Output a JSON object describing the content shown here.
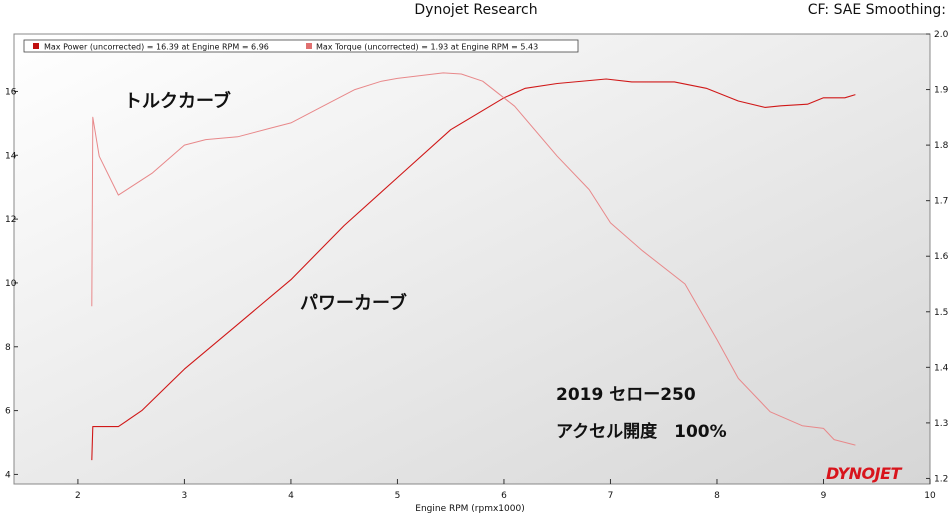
{
  "header": {
    "center_title": "Dynojet Research",
    "right_text": "CF: SAE  Smoothing:"
  },
  "brand": {
    "logo_text": "DYNOJET",
    "logo_color": "#d8141c"
  },
  "chart_data": {
    "type": "line",
    "xlabel": "Engine RPM (rpmx1000)",
    "xlim": [
      1.4,
      10
    ],
    "x_ticks": [
      2,
      3,
      4,
      5,
      6,
      7,
      8,
      9,
      10
    ],
    "y_left_lim": [
      3.7,
      17.8
    ],
    "y_left_ticks": [
      4,
      6,
      8,
      10,
      12,
      14,
      16
    ],
    "y_right_lim": [
      1.19,
      2.0
    ],
    "y_right_ticks": [
      1.2,
      1.3,
      1.4,
      1.5,
      1.6,
      1.7,
      1.8,
      1.9,
      2.0
    ],
    "grid": false,
    "legend_position": "top-left",
    "series": [
      {
        "name": "Max Power (uncorrected) = 16.39 at Engine RPM = 6.96",
        "axis": "left",
        "color": "#d01818",
        "points": [
          [
            2.13,
            4.45
          ],
          [
            2.14,
            5.5
          ],
          [
            2.18,
            5.5
          ],
          [
            2.38,
            5.5
          ],
          [
            2.6,
            6.0
          ],
          [
            3.0,
            7.3
          ],
          [
            3.5,
            8.7
          ],
          [
            4.0,
            10.1
          ],
          [
            4.5,
            11.8
          ],
          [
            5.0,
            13.3
          ],
          [
            5.5,
            14.8
          ],
          [
            6.0,
            15.8
          ],
          [
            6.2,
            16.1
          ],
          [
            6.5,
            16.25
          ],
          [
            6.96,
            16.39
          ],
          [
            7.2,
            16.3
          ],
          [
            7.6,
            16.3
          ],
          [
            7.9,
            16.1
          ],
          [
            8.2,
            15.7
          ],
          [
            8.45,
            15.5
          ],
          [
            8.6,
            15.55
          ],
          [
            8.85,
            15.6
          ],
          [
            9.0,
            15.8
          ],
          [
            9.2,
            15.8
          ],
          [
            9.3,
            15.9
          ]
        ]
      },
      {
        "name": "Max Torque (uncorrected) = 1.93 at Engine RPM = 5.43",
        "axis": "right",
        "color": "#e8888a",
        "points": [
          [
            2.13,
            1.51
          ],
          [
            2.14,
            1.85
          ],
          [
            2.2,
            1.78
          ],
          [
            2.38,
            1.71
          ],
          [
            2.7,
            1.75
          ],
          [
            3.0,
            1.8
          ],
          [
            3.2,
            1.81
          ],
          [
            3.5,
            1.815
          ],
          [
            3.8,
            1.83
          ],
          [
            4.0,
            1.84
          ],
          [
            4.3,
            1.87
          ],
          [
            4.6,
            1.9
          ],
          [
            4.85,
            1.915
          ],
          [
            5.0,
            1.92
          ],
          [
            5.43,
            1.93
          ],
          [
            5.6,
            1.928
          ],
          [
            5.8,
            1.915
          ],
          [
            6.1,
            1.87
          ],
          [
            6.5,
            1.78
          ],
          [
            6.8,
            1.72
          ],
          [
            7.0,
            1.66
          ],
          [
            7.3,
            1.61
          ],
          [
            7.7,
            1.55
          ],
          [
            8.0,
            1.45
          ],
          [
            8.2,
            1.38
          ],
          [
            8.5,
            1.32
          ],
          [
            8.8,
            1.295
          ],
          [
            9.0,
            1.29
          ],
          [
            9.1,
            1.27
          ],
          [
            9.3,
            1.26
          ]
        ]
      }
    ],
    "annotations": [
      "トルクカーブ",
      "パワーカーブ",
      "2019 セロー250",
      "アクセル開度　100%"
    ]
  }
}
